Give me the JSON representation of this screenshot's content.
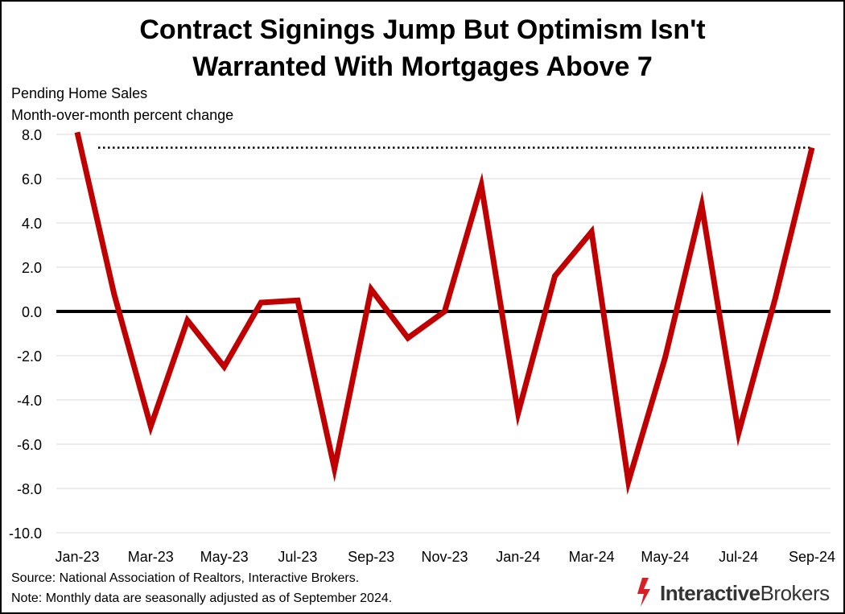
{
  "title_line1": "Contract Signings Jump But Optimism Isn't",
  "title_line2": "Warranted With Mortgages Above 7",
  "subtitle_line1": "Pending Home Sales",
  "subtitle_line2": "Month-over-month percent change",
  "source": "Source: National Association of Realtors, Interactive Brokers.",
  "note": "Note: Monthly data are seasonally adjusted as of September 2024.",
  "logo": {
    "bold": "Interactive",
    "regular": "Brokers"
  },
  "colors": {
    "series": "#c00000",
    "zero_line": "#000000",
    "grid": "#d9d9d9",
    "reference": "#000000"
  },
  "chart_data": {
    "type": "line",
    "x": [
      "Jan-23",
      "Feb-23",
      "Mar-23",
      "Apr-23",
      "May-23",
      "Jun-23",
      "Jul-23",
      "Aug-23",
      "Sep-23",
      "Oct-23",
      "Nov-23",
      "Dec-23",
      "Jan-24",
      "Feb-24",
      "Mar-24",
      "Apr-24",
      "May-24",
      "Jun-24",
      "Jul-24",
      "Aug-24",
      "Sep-24"
    ],
    "x_tick_labels": [
      "Jan-23",
      "Mar-23",
      "May-23",
      "Jul-23",
      "Sep-23",
      "Nov-23",
      "Jan-24",
      "Mar-24",
      "May-24",
      "Jul-24",
      "Sep-24"
    ],
    "y_tick_labels": [
      "8.0",
      "6.0",
      "4.0",
      "2.0",
      "0.0",
      "-2.0",
      "-4.0",
      "-6.0",
      "-8.0",
      "-10.0"
    ],
    "series": [
      {
        "values": [
          8.1,
          0.8,
          -5.2,
          -0.4,
          -2.5,
          0.4,
          0.5,
          -7.1,
          1.0,
          -1.2,
          0.0,
          5.7,
          -4.6,
          1.6,
          3.6,
          -7.7,
          -2.1,
          4.8,
          -5.5,
          0.6,
          7.4
        ]
      }
    ],
    "reference_line": {
      "value": 7.4,
      "style": "dotted"
    },
    "ylim": [
      -10,
      8
    ],
    "grid": true,
    "zero_line": true,
    "xlabel": "",
    "ylabel": ""
  }
}
